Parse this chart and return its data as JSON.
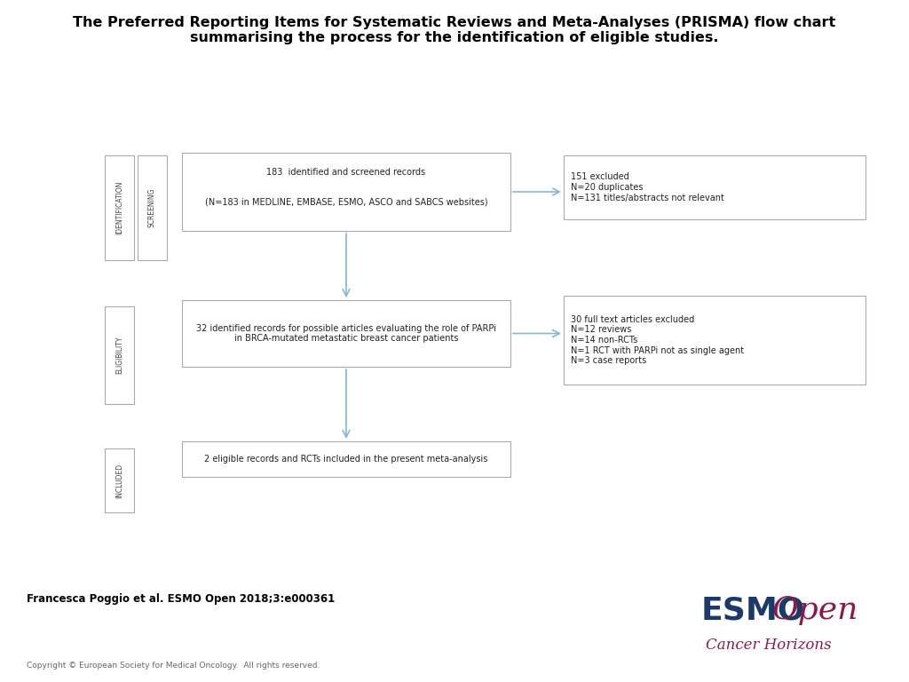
{
  "title_line1": "The Preferred Reporting Items for Systematic Reviews and Meta-Analyses (PRISMA) flow chart",
  "title_line2": "summarising the process for the identification of eligible studies.",
  "title_fontsize": 11.5,
  "box1_text_top": "183  identified and screened records",
  "box1_text_bot": "(N=183 in MEDLINE, EMBASE, ESMO, ASCO and SABCS websites)",
  "box2_text": "32 identified records for possible articles evaluating the role of PARPi\nin BRCA-mutated metastatic breast cancer patients",
  "box3_text": "2 eligible records and RCTs included in the present meta-analysis",
  "box_excl1_text": "151 excluded\nN=20 duplicates\nN=131 titles/abstracts not relevant",
  "box_excl2_text": "30 full text articles excluded\nN=12 reviews\nN=14 non-RCTs\nN=1 RCT with PARPi not as single agent\nN=3 case reports",
  "label_identification": "IDENTIFICATION",
  "label_screening": "SCREENING",
  "label_eligibility": "ELIGIBILITY",
  "label_included": "INCLUDED",
  "author_text": "Francesca Poggio et al. ESMO Open 2018;3:e000361",
  "copyright_text": "Copyright © European Society for Medical Oncology.  All rights reserved.",
  "esmo_blue": "#1a3a6b",
  "esmo_red": "#8b1a4a",
  "arrow_color": "#89b8d4",
  "box_edge_color": "#aaaaaa",
  "background": "#ffffff",
  "text_color": "#444444",
  "text_color_dark": "#222222"
}
